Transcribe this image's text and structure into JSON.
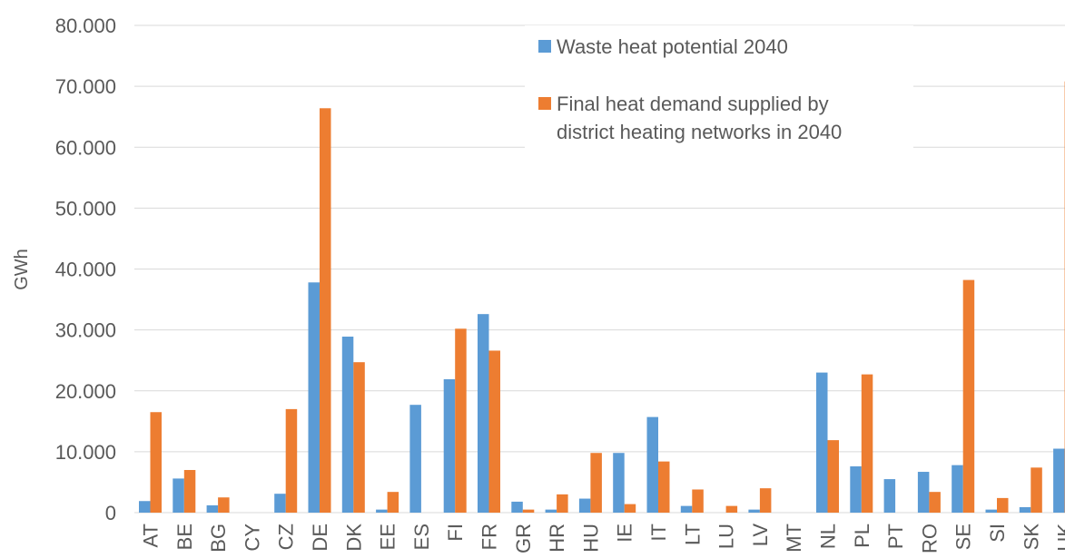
{
  "colors": {
    "waste": "#5b9bd5",
    "demand": "#ed7d31",
    "grid": "#d9d9d9",
    "text": "#595959"
  },
  "chart_data": {
    "type": "bar",
    "title": "",
    "xlabel": "",
    "ylabel": "GWh",
    "ylim": [
      0,
      80000
    ],
    "yticks": [
      {
        "value": 0,
        "label": "0"
      },
      {
        "value": 10000,
        "label": "10.000"
      },
      {
        "value": 20000,
        "label": "20.000"
      },
      {
        "value": 30000,
        "label": "30.000"
      },
      {
        "value": 40000,
        "label": "40.000"
      },
      {
        "value": 50000,
        "label": "50.000"
      },
      {
        "value": 60000,
        "label": "60.000"
      },
      {
        "value": 70000,
        "label": "70.000"
      },
      {
        "value": 80000,
        "label": "80.000"
      }
    ],
    "grid": true,
    "legend_position": "top-right",
    "categories": [
      "AT",
      "BE",
      "BG",
      "CY",
      "CZ",
      "DE",
      "DK",
      "EE",
      "ES",
      "FI",
      "FR",
      "GR",
      "HR",
      "HU",
      "IE",
      "IT",
      "LT",
      "LU",
      "LV",
      "MT",
      "NL",
      "PL",
      "PT",
      "RO",
      "SE",
      "SI",
      "SK",
      "UK"
    ],
    "series": [
      {
        "name": "Waste heat potential 2040",
        "color": "#5b9bd5",
        "values": [
          1900,
          5600,
          1200,
          0,
          3100,
          37800,
          28900,
          500,
          17700,
          21900,
          32600,
          1800,
          500,
          2300,
          9800,
          15700,
          1100,
          0,
          500,
          0,
          23000,
          7600,
          5500,
          6700,
          7800,
          500,
          900,
          10500
        ]
      },
      {
        "name": "Final heat demand supplied by district heating networks in 2040",
        "legend_lines": [
          "Final heat demand supplied by",
          "district heating networks in 2040"
        ],
        "color": "#ed7d31",
        "values": [
          16500,
          7000,
          2500,
          0,
          17000,
          66400,
          24700,
          3400,
          0,
          30200,
          26600,
          500,
          3000,
          9800,
          1400,
          8400,
          3800,
          1100,
          4000,
          0,
          11900,
          22700,
          0,
          3400,
          38200,
          2400,
          7400,
          70800
        ]
      }
    ]
  }
}
